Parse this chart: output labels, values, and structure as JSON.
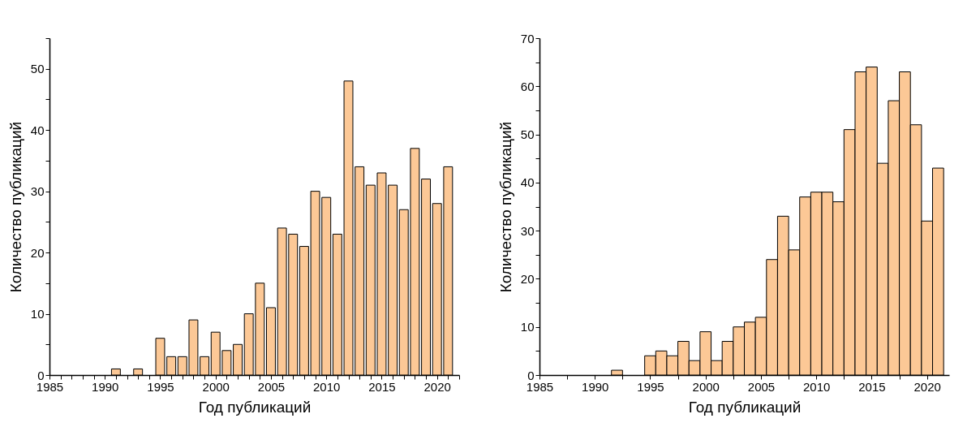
{
  "chart_data": [
    {
      "type": "bar",
      "xlabel": "Год публикаций",
      "ylabel": "Количество публикаций",
      "color": "#fcc896",
      "grid": false,
      "x": [
        1991,
        1993,
        1995,
        1996,
        1997,
        1998,
        1999,
        2000,
        2001,
        2002,
        2003,
        2004,
        2005,
        2006,
        2007,
        2008,
        2009,
        2010,
        2011,
        2012,
        2013,
        2014,
        2015,
        2016,
        2017,
        2018,
        2019,
        2020,
        2021
      ],
      "values": [
        1,
        1,
        6,
        3,
        3,
        9,
        3,
        7,
        4,
        5,
        10,
        15,
        11,
        24,
        23,
        21,
        30,
        29,
        23,
        48,
        34,
        31,
        33,
        31,
        27,
        37,
        32,
        28,
        34
      ],
      "xlim": [
        1985,
        2022
      ],
      "xticks": [
        1985,
        {
          "value": 1986,
          "label": null
        },
        {
          "value": 1987,
          "label": null
        },
        {
          "value": 1988,
          "label": null
        },
        {
          "value": 1989,
          "label": null
        },
        1990,
        {
          "value": 1991,
          "label": null
        },
        {
          "value": 1992,
          "label": null
        },
        {
          "value": 1993,
          "label": null
        },
        {
          "value": 1994,
          "label": null
        },
        1995,
        {
          "value": 1996,
          "label": null
        },
        {
          "value": 1997,
          "label": null
        },
        {
          "value": 1998,
          "label": null
        },
        {
          "value": 1999,
          "label": null
        },
        2000,
        {
          "value": 2001,
          "label": null
        },
        {
          "value": 2002,
          "label": null
        },
        {
          "value": 2003,
          "label": null
        },
        {
          "value": 2004,
          "label": null
        },
        2005,
        {
          "value": 2006,
          "label": null
        },
        {
          "value": 2007,
          "label": null
        },
        {
          "value": 2008,
          "label": null
        },
        {
          "value": 2009,
          "label": null
        },
        2010,
        {
          "value": 2011,
          "label": null
        },
        {
          "value": 2012,
          "label": null
        },
        {
          "value": 2013,
          "label": null
        },
        {
          "value": 2014,
          "label": null
        },
        2015,
        {
          "value": 2016,
          "label": null
        },
        {
          "value": 2017,
          "label": null
        },
        {
          "value": 2018,
          "label": null
        },
        {
          "value": 2019,
          "label": null
        },
        2020,
        {
          "value": 2021,
          "label": null
        },
        {
          "value": 2022,
          "label": null
        }
      ],
      "ylim": [
        0,
        55
      ],
      "yticks": [
        0,
        {
          "value": 5,
          "label": null
        },
        10,
        {
          "value": 15,
          "label": null
        },
        20,
        {
          "value": 25,
          "label": null
        },
        30,
        {
          "value": 35,
          "label": null
        },
        40,
        {
          "value": 45,
          "label": null
        },
        50,
        {
          "value": 55,
          "label": null
        }
      ]
    },
    {
      "type": "histogram",
      "xlabel": "Год публикаций",
      "ylabel": "Количество публикаций",
      "color": "#fcc896",
      "grid": false,
      "bins": [
        1991.5,
        1992.5,
        1993.5,
        1994.5,
        1995.5,
        1996.5,
        1997.5,
        1998.5,
        1999.5,
        2000.5,
        2001.5,
        2002.5,
        2003.5,
        2004.5,
        2005.5,
        2006.5,
        2007.5,
        2008.5,
        2009.5,
        2010.5,
        2011.5,
        2012.5,
        2013.5,
        2014.5,
        2015.5,
        2016.5,
        2017.5,
        2018.5,
        2019.5,
        2020.5,
        2021.5
      ],
      "values": [
        1,
        0,
        0,
        4,
        5,
        4,
        7,
        3,
        9,
        3,
        7,
        10,
        11,
        12,
        24,
        33,
        26,
        37,
        38,
        38,
        36,
        51,
        63,
        64,
        44,
        57,
        63,
        52,
        32,
        43
      ],
      "xlim": [
        1985,
        2022
      ],
      "xticks": [
        1985,
        {
          "value": 1987.5,
          "label": null
        },
        1990,
        {
          "value": 1992.5,
          "label": null
        },
        1995,
        {
          "value": 1997.5,
          "label": null
        },
        2000,
        {
          "value": 2002.5,
          "label": null
        },
        2005,
        {
          "value": 2007.5,
          "label": null
        },
        2010,
        {
          "value": 2012.5,
          "label": null
        },
        2015,
        {
          "value": 2017.5,
          "label": null
        },
        2020
      ],
      "ylim": [
        0,
        70
      ],
      "yticks": [
        0,
        {
          "value": 5,
          "label": null
        },
        10,
        {
          "value": 15,
          "label": null
        },
        20,
        {
          "value": 25,
          "label": null
        },
        30,
        {
          "value": 35,
          "label": null
        },
        40,
        {
          "value": 45,
          "label": null
        },
        50,
        {
          "value": 55,
          "label": null
        },
        60,
        {
          "value": 65,
          "label": null
        },
        70
      ]
    }
  ]
}
